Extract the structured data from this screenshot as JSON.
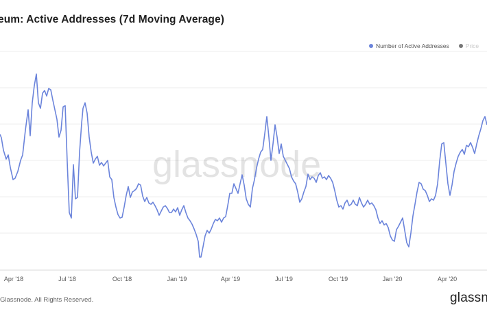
{
  "header": {
    "title": "eum: Active Addresses (7d Moving Average)"
  },
  "legend": {
    "items": [
      {
        "label": "Number of Active Addresses",
        "color": "#6b84db"
      },
      {
        "label": "Price",
        "color": "#777777"
      }
    ]
  },
  "watermark": "glassnode",
  "footer": {
    "copyright": "Glassnode. All Rights Reserved.",
    "brand": "glassnode"
  },
  "chart_data": {
    "type": "line",
    "title": "eum: Active Addresses (7d Moving Average)",
    "xlabel": "",
    "ylabel": "",
    "x_ticks": [
      "Apr '18",
      "Jul '18",
      "Oct '18",
      "Jan '19",
      "Apr '19",
      "Jul '19",
      "Oct '19",
      "Jan '20",
      "Apr '20"
    ],
    "grid": true,
    "legend_position": "top-right",
    "series": [
      {
        "name": "Number of Active Addresses",
        "color": "#6b84db",
        "index_values": [
          [
            0,
            196
          ],
          [
            2,
            201
          ],
          [
            5,
            219
          ],
          [
            9,
            232
          ],
          [
            12,
            226
          ],
          [
            15,
            244
          ],
          [
            19,
            262
          ],
          [
            22,
            260
          ],
          [
            26,
            250
          ],
          [
            30,
            234
          ],
          [
            33,
            226
          ],
          [
            37,
            190
          ],
          [
            41,
            160
          ],
          [
            44,
            198
          ],
          [
            47,
            150
          ],
          [
            50,
            125
          ],
          [
            53,
            108
          ],
          [
            56,
            150
          ],
          [
            59,
            158
          ],
          [
            62,
            136
          ],
          [
            65,
            132
          ],
          [
            68,
            140
          ],
          [
            71,
            129
          ],
          [
            74,
            131
          ],
          [
            77,
            146
          ],
          [
            80,
            160
          ],
          [
            83,
            174
          ],
          [
            86,
            200
          ],
          [
            89,
            190
          ],
          [
            92,
            156
          ],
          [
            95,
            154
          ],
          [
            98,
            236
          ],
          [
            101,
            310
          ],
          [
            104,
            318
          ],
          [
            107,
            240
          ],
          [
            110,
            290
          ],
          [
            113,
            288
          ],
          [
            116,
            222
          ],
          [
            119,
            180
          ],
          [
            121,
            158
          ],
          [
            124,
            150
          ],
          [
            127,
            165
          ],
          [
            130,
            200
          ],
          [
            133,
            222
          ],
          [
            136,
            238
          ],
          [
            139,
            232
          ],
          [
            142,
            228
          ],
          [
            145,
            241
          ],
          [
            148,
            237
          ],
          [
            151,
            242
          ],
          [
            154,
            238
          ],
          [
            157,
            234
          ],
          [
            160,
            258
          ],
          [
            163,
            262
          ],
          [
            166,
            288
          ],
          [
            169,
            302
          ],
          [
            172,
            313
          ],
          [
            175,
            318
          ],
          [
            178,
            317
          ],
          [
            181,
            302
          ],
          [
            184,
            285
          ],
          [
            187,
            272
          ],
          [
            190,
            288
          ],
          [
            193,
            280
          ],
          [
            196,
            278
          ],
          [
            199,
            275
          ],
          [
            202,
            268
          ],
          [
            205,
            270
          ],
          [
            208,
            286
          ],
          [
            211,
            294
          ],
          [
            214,
            288
          ],
          [
            217,
            296
          ],
          [
            220,
            298
          ],
          [
            223,
            295
          ],
          [
            226,
            300
          ],
          [
            229,
            306
          ],
          [
            232,
            314
          ],
          [
            235,
            308
          ],
          [
            238,
            302
          ],
          [
            241,
            300
          ],
          [
            244,
            304
          ],
          [
            247,
            310
          ],
          [
            250,
            310
          ],
          [
            253,
            305
          ],
          [
            256,
            309
          ],
          [
            259,
            303
          ],
          [
            262,
            314
          ],
          [
            265,
            306
          ],
          [
            268,
            300
          ],
          [
            271,
            310
          ],
          [
            274,
            318
          ],
          [
            277,
            322
          ],
          [
            280,
            327
          ],
          [
            283,
            334
          ],
          [
            286,
            342
          ],
          [
            289,
            352
          ],
          [
            291,
            375
          ],
          [
            293,
            375
          ],
          [
            296,
            360
          ],
          [
            299,
            344
          ],
          [
            302,
            336
          ],
          [
            305,
            340
          ],
          [
            308,
            334
          ],
          [
            311,
            326
          ],
          [
            314,
            320
          ],
          [
            317,
            322
          ],
          [
            320,
            318
          ],
          [
            323,
            324
          ],
          [
            326,
            318
          ],
          [
            329,
            316
          ],
          [
            332,
            300
          ],
          [
            335,
            282
          ],
          [
            338,
            282
          ],
          [
            341,
            268
          ],
          [
            344,
            275
          ],
          [
            347,
            282
          ],
          [
            350,
            268
          ],
          [
            353,
            255
          ],
          [
            356,
            270
          ],
          [
            359,
            290
          ],
          [
            362,
            298
          ],
          [
            365,
            302
          ],
          [
            368,
            275
          ],
          [
            371,
            262
          ],
          [
            374,
            245
          ],
          [
            377,
            232
          ],
          [
            380,
            222
          ],
          [
            383,
            218
          ],
          [
            386,
            195
          ],
          [
            389,
            170
          ],
          [
            392,
            200
          ],
          [
            395,
            234
          ],
          [
            398,
            210
          ],
          [
            401,
            182
          ],
          [
            404,
            200
          ],
          [
            407,
            224
          ],
          [
            410,
            210
          ],
          [
            413,
            228
          ],
          [
            416,
            234
          ],
          [
            419,
            240
          ],
          [
            422,
            246
          ],
          [
            425,
            258
          ],
          [
            428,
            264
          ],
          [
            431,
            268
          ],
          [
            434,
            280
          ],
          [
            437,
            295
          ],
          [
            440,
            290
          ],
          [
            443,
            280
          ],
          [
            446,
            272
          ],
          [
            449,
            254
          ],
          [
            452,
            262
          ],
          [
            455,
            258
          ],
          [
            458,
            260
          ],
          [
            461,
            266
          ],
          [
            464,
            256
          ],
          [
            467,
            252
          ],
          [
            470,
            260
          ],
          [
            473,
            258
          ],
          [
            476,
            262
          ],
          [
            479,
            256
          ],
          [
            482,
            260
          ],
          [
            485,
            266
          ],
          [
            488,
            278
          ],
          [
            491,
            292
          ],
          [
            494,
            302
          ],
          [
            497,
            300
          ],
          [
            500,
            305
          ],
          [
            503,
            296
          ],
          [
            506,
            292
          ],
          [
            509,
            300
          ],
          [
            512,
            298
          ],
          [
            515,
            292
          ],
          [
            518,
            298
          ],
          [
            521,
            300
          ],
          [
            524,
            288
          ],
          [
            527,
            296
          ],
          [
            530,
            302
          ],
          [
            533,
            298
          ],
          [
            536,
            292
          ],
          [
            539,
            298
          ],
          [
            542,
            296
          ],
          [
            545,
            300
          ],
          [
            548,
            306
          ],
          [
            551,
            318
          ],
          [
            554,
            326
          ],
          [
            557,
            322
          ],
          [
            560,
            328
          ],
          [
            563,
            326
          ],
          [
            566,
            332
          ],
          [
            569,
            344
          ],
          [
            572,
            350
          ],
          [
            575,
            352
          ],
          [
            578,
            335
          ],
          [
            581,
            330
          ],
          [
            584,
            324
          ],
          [
            587,
            318
          ],
          [
            590,
            336
          ],
          [
            593,
            354
          ],
          [
            596,
            360
          ],
          [
            599,
            340
          ],
          [
            602,
            315
          ],
          [
            605,
            298
          ],
          [
            608,
            280
          ],
          [
            611,
            266
          ],
          [
            614,
            268
          ],
          [
            617,
            276
          ],
          [
            620,
            278
          ],
          [
            623,
            285
          ],
          [
            626,
            294
          ],
          [
            629,
            290
          ],
          [
            632,
            292
          ],
          [
            635,
            285
          ],
          [
            638,
            268
          ],
          [
            641,
            235
          ],
          [
            644,
            210
          ],
          [
            647,
            208
          ],
          [
            650,
            238
          ],
          [
            653,
            268
          ],
          [
            656,
            285
          ],
          [
            659,
            270
          ],
          [
            662,
            250
          ],
          [
            665,
            238
          ],
          [
            668,
            228
          ],
          [
            671,
            222
          ],
          [
            674,
            218
          ],
          [
            677,
            225
          ],
          [
            680,
            212
          ],
          [
            683,
            214
          ],
          [
            686,
            208
          ],
          [
            689,
            215
          ],
          [
            692,
            224
          ],
          [
            695,
            210
          ],
          [
            698,
            198
          ],
          [
            701,
            188
          ],
          [
            704,
            176
          ],
          [
            707,
            170
          ],
          [
            710,
            182
          ]
        ]
      },
      {
        "name": "Price",
        "visible": false
      }
    ]
  }
}
